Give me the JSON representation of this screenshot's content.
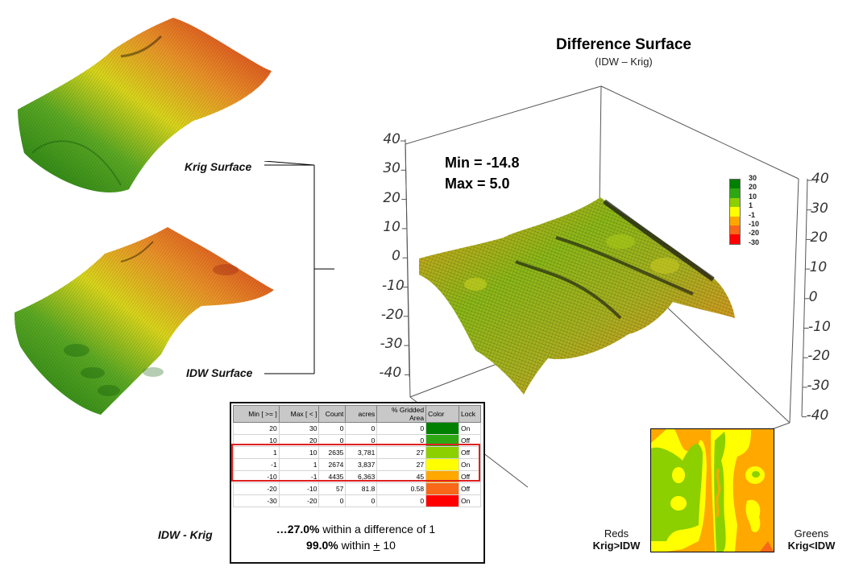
{
  "surfaces": {
    "krig_label": "Krig Surface",
    "idw_label": "IDW Surface"
  },
  "difference_chart": {
    "title": "Difference Surface",
    "subtitle": "(IDW – Krig)",
    "min_text": "Min = -14.8",
    "max_text": "Max = 5.0",
    "z_ticks": [
      "40",
      "30",
      "20",
      "10",
      "0",
      "-10",
      "-20",
      "-30",
      "-40"
    ],
    "legend": [
      {
        "label": "30",
        "color": "#008000"
      },
      {
        "label": "20",
        "color": "#2ea812"
      },
      {
        "label": "10",
        "color": "#8cd000"
      },
      {
        "label": "1",
        "color": "#ffff00"
      },
      {
        "label": "-1",
        "color": "#ffa800"
      },
      {
        "label": "-10",
        "color": "#f86818"
      },
      {
        "label": "-20",
        "color": "#ff0000"
      },
      {
        "label": "-30",
        "color": null
      }
    ]
  },
  "chart_data": {
    "type": "table",
    "title": "Difference Surface",
    "subtitle": "(IDW – Krig)",
    "min": -14.8,
    "max": 5.0,
    "zlim": [
      -40,
      40
    ],
    "columns": [
      "Min [ >= ]",
      "Max [ < ]",
      "Count",
      "acres",
      "% Gridded Area",
      "Color",
      "Lock"
    ],
    "rows": [
      {
        "min": "20",
        "max": "30",
        "count": "0",
        "acres": "0",
        "pct": "0",
        "color": "#008000",
        "lock": "On"
      },
      {
        "min": "10",
        "max": "20",
        "count": "0",
        "acres": "0",
        "pct": "0",
        "color": "#2ea812",
        "lock": "Off"
      },
      {
        "min": "1",
        "max": "10",
        "count": "2635",
        "acres": "3,781",
        "pct": "27",
        "color": "#8cd000",
        "lock": "Off"
      },
      {
        "min": "-1",
        "max": "1",
        "count": "2674",
        "acres": "3,837",
        "pct": "27",
        "color": "#ffff00",
        "lock": "On"
      },
      {
        "min": "-10",
        "max": "-1",
        "count": "4435",
        "acres": "6,363",
        "pct": "45",
        "color": "#ffa800",
        "lock": "Off"
      },
      {
        "min": "-20",
        "max": "-10",
        "count": "57",
        "acres": "81.8",
        "pct": "0.58",
        "color": "#f86818",
        "lock": "Off"
      },
      {
        "min": "-30",
        "max": "-20",
        "count": "0",
        "acres": "0",
        "pct": "0",
        "color": "#ff0000",
        "lock": "On"
      }
    ],
    "highlighted_rows": [
      2,
      3,
      4
    ]
  },
  "table_panel": {
    "side_label": "IDW - Krig",
    "summary_line1_bold": "…27.0%",
    "summary_line1_rest": " within a difference of 1",
    "summary_line2_bold": "99.0%",
    "summary_line2_mid": " within ",
    "summary_line2_pm": "+",
    "summary_line2_end": " 10"
  },
  "map_captions": {
    "left_top": "Reds",
    "left_bottom": "Krig>IDW",
    "right_top": "Greens",
    "right_bottom": "Krig<IDW"
  }
}
